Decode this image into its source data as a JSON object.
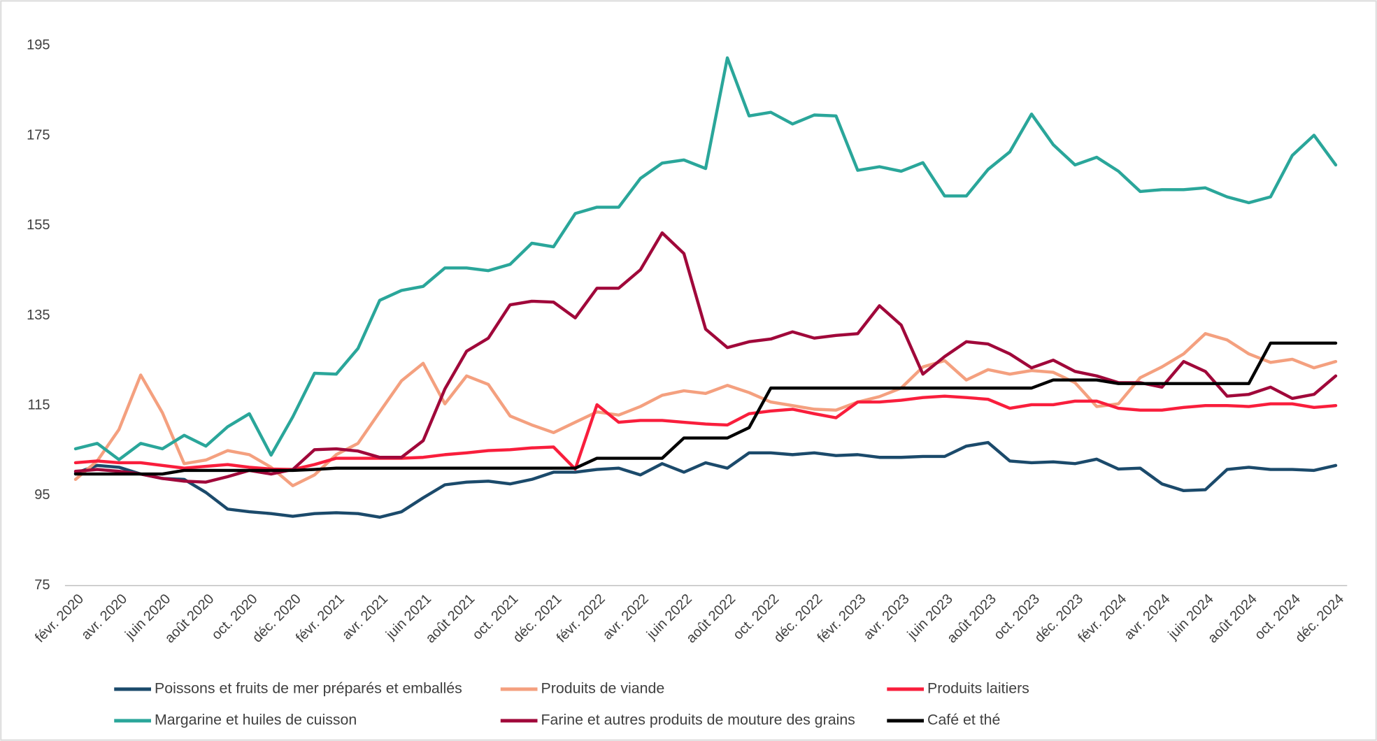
{
  "chart_data": {
    "type": "line",
    "categories": [
      "févr. 2020",
      null,
      "avr. 2020",
      null,
      "juin 2020",
      null,
      "août 2020",
      null,
      "oct. 2020",
      null,
      "déc. 2020",
      null,
      "févr. 2021",
      null,
      "avr. 2021",
      null,
      "juin 2021",
      null,
      "août 2021",
      null,
      "oct. 2021",
      null,
      "déc. 2021",
      null,
      "févr. 2022",
      null,
      "avr. 2022",
      null,
      "juin 2022",
      null,
      "août 2022",
      null,
      "oct. 2022",
      null,
      "déc. 2022",
      null,
      "févr. 2023",
      null,
      "avr. 2023",
      null,
      "juin 2023",
      null,
      "août 2023",
      null,
      "oct. 2023",
      null,
      "déc. 2023",
      null,
      "févr. 2024",
      null,
      "avr. 2024",
      null,
      "juin 2024",
      null,
      "août 2024",
      null,
      "oct. 2024",
      null,
      "déc. 2024"
    ],
    "ylim": [
      75,
      195
    ],
    "yticks": [
      75,
      95,
      115,
      135,
      155,
      175,
      195
    ],
    "grid": false,
    "legend": "bottom",
    "series": [
      {
        "name": "Poissons et fruits de mer préparés et emballés",
        "color": "#1b4a6b",
        "values": [
          100,
          101.7,
          101.3,
          99.8,
          98.8,
          98.6,
          95.7,
          92,
          91.4,
          91,
          90.4,
          91,
          91.2,
          91,
          90.2,
          91.4,
          94.5,
          97.4,
          98,
          98.2,
          97.6,
          98.6,
          100.2,
          100.2,
          100.8,
          101.1,
          99.6,
          102.1,
          100.2,
          102.3,
          101.1,
          104.5,
          104.5,
          104.1,
          104.5,
          103.9,
          104.1,
          103.5,
          103.5,
          103.7,
          103.7,
          106,
          106.8,
          102.7,
          102.3,
          102.5,
          102.1,
          103.1,
          100.9,
          101.1,
          97.6,
          96.1,
          96.3,
          100.8,
          101.3,
          100.8,
          100.8,
          100.6,
          101.7
        ]
      },
      {
        "name": "Produits de viande",
        "color": "#f4a07f",
        "values": [
          98.6,
          102.7,
          109.7,
          121.8,
          113.4,
          102.1,
          102.9,
          105,
          104.1,
          101.3,
          97.2,
          99.6,
          104.1,
          106.6,
          113.6,
          120.5,
          124.4,
          115.4,
          121.6,
          119.7,
          112.7,
          110.7,
          109,
          111.3,
          113.6,
          112.9,
          114.8,
          117.3,
          118.3,
          117.7,
          119.5,
          117.9,
          115.8,
          115,
          114.2,
          114,
          115.8,
          117,
          118.9,
          123.6,
          125,
          120.7,
          123,
          122,
          122.8,
          122.4,
          120.1,
          114.8,
          115.4,
          121.2,
          123.6,
          126.5,
          131,
          129.6,
          126.5,
          124.6,
          125.3,
          123.4,
          124.8
        ]
      },
      {
        "name": "Produits laitiers",
        "color": "#f91e3c",
        "values": [
          102.3,
          102.7,
          102.3,
          102.3,
          101.7,
          101.1,
          101.5,
          101.9,
          101.3,
          100.9,
          100.8,
          101.9,
          103.3,
          103.3,
          103.3,
          103.3,
          103.5,
          104.1,
          104.5,
          105,
          105.2,
          105.6,
          105.8,
          100.9,
          115.2,
          111.3,
          111.7,
          111.7,
          111.3,
          110.9,
          110.7,
          113.2,
          113.8,
          114.2,
          113.2,
          112.3,
          115.8,
          115.8,
          116.2,
          116.8,
          117.1,
          116.8,
          116.4,
          114.4,
          115.2,
          115.2,
          116,
          116,
          114.4,
          114,
          114,
          114.6,
          115,
          115,
          114.8,
          115.4,
          115.4,
          114.6,
          115
        ]
      },
      {
        "name": "Margarine et huiles de cuisson",
        "color": "#2aa69a",
        "values": [
          105.4,
          106.6,
          103,
          106.6,
          105.4,
          108.4,
          106,
          110.3,
          113.2,
          104,
          112.5,
          122.2,
          122,
          127.7,
          138.4,
          140.6,
          141.5,
          145.6,
          145.6,
          145,
          146.4,
          151.1,
          150.3,
          157.7,
          159.1,
          159.1,
          165.5,
          168.9,
          169.6,
          167.7,
          192.3,
          179.4,
          180.2,
          177.6,
          179.6,
          179.4,
          167.3,
          168.1,
          167.1,
          169,
          161.6,
          161.6,
          167.5,
          171.4,
          179.8,
          173,
          168.5,
          170.2,
          167.1,
          162.6,
          163,
          163,
          163.4,
          161.4,
          160.1,
          161.4,
          170.6,
          175.1,
          168.5
        ]
      },
      {
        "name": "Farine et autres produits de mouture des grains",
        "color": "#a0083a",
        "values": [
          100.4,
          100.8,
          100.4,
          99.8,
          98.8,
          98.2,
          98,
          99.2,
          100.6,
          99.8,
          100.8,
          105.2,
          105.4,
          104.9,
          103.5,
          103.5,
          107.2,
          118.7,
          127.1,
          130,
          137.4,
          138.2,
          138,
          134.5,
          141.1,
          141.1,
          145.2,
          153.4,
          148.8,
          132,
          127.9,
          129.2,
          129.8,
          131.4,
          130,
          130.6,
          131,
          137.2,
          132.9,
          122,
          125.9,
          129.2,
          128.7,
          126.5,
          123.4,
          125.1,
          122.6,
          121.6,
          120.1,
          120.1,
          119.1,
          124.8,
          122.6,
          117.1,
          117.5,
          119.1,
          116.6,
          117.5,
          121.6
        ]
      },
      {
        "name": "Café et thé",
        "color": "#000000",
        "values": [
          99.8,
          99.8,
          99.8,
          99.8,
          99.8,
          100.6,
          100.6,
          100.6,
          100.6,
          100.6,
          100.6,
          100.8,
          101.1,
          101.1,
          101.1,
          101.1,
          101.1,
          101.1,
          101.1,
          101.1,
          101.1,
          101.1,
          101.1,
          101.1,
          103.3,
          103.3,
          103.3,
          103.3,
          107.8,
          107.8,
          107.8,
          110.1,
          118.9,
          118.9,
          118.9,
          118.9,
          118.9,
          118.9,
          118.9,
          118.9,
          118.9,
          118.9,
          118.9,
          118.9,
          118.9,
          120.7,
          120.7,
          120.7,
          119.9,
          119.9,
          119.9,
          119.9,
          119.9,
          119.9,
          119.9,
          128.9,
          128.9,
          128.9,
          128.9
        ]
      }
    ]
  }
}
